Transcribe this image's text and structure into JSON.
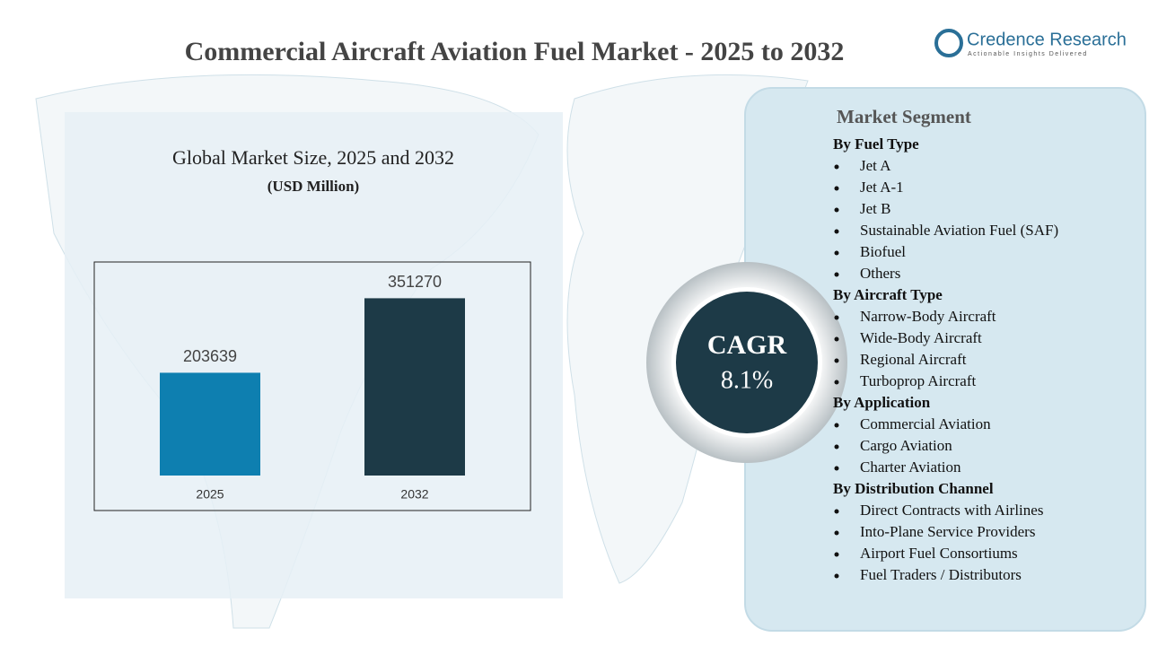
{
  "header": {
    "title": "Commercial Aircraft Aviation Fuel Market - 2025 to 2032",
    "logo_name": "Credence Research",
    "logo_tagline": "Actionable Insights Delivered"
  },
  "chart_data": {
    "type": "bar",
    "title": "Global Market Size, 2025 and 2032",
    "subtitle": "(USD Million)",
    "categories": [
      "2025",
      "2032"
    ],
    "values": [
      203639,
      351270
    ],
    "colors": [
      "#0e7fb0",
      "#1d3a47"
    ],
    "ylim": [
      0,
      400000
    ]
  },
  "cagr": {
    "label": "CAGR",
    "value": "8.1%"
  },
  "segments": {
    "title": "Market Segment",
    "groups": [
      {
        "title": "By Fuel Type",
        "items": [
          "Jet A",
          "Jet A-1",
          "Jet B",
          "Sustainable Aviation Fuel (SAF)",
          "Biofuel",
          "Others"
        ]
      },
      {
        "title": "By Aircraft Type",
        "items": [
          "Narrow-Body Aircraft",
          "Wide-Body Aircraft",
          "Regional Aircraft",
          "Turboprop Aircraft"
        ]
      },
      {
        "title": "By Application",
        "items": [
          "Commercial Aviation",
          "Cargo Aviation",
          "Charter Aviation"
        ]
      },
      {
        "title": "By Distribution  Channel",
        "items": [
          "Direct Contracts with Airlines",
          "Into-Plane Service Providers",
          "Airport Fuel Consortiums",
          "Fuel Traders / Distributors"
        ]
      }
    ]
  }
}
